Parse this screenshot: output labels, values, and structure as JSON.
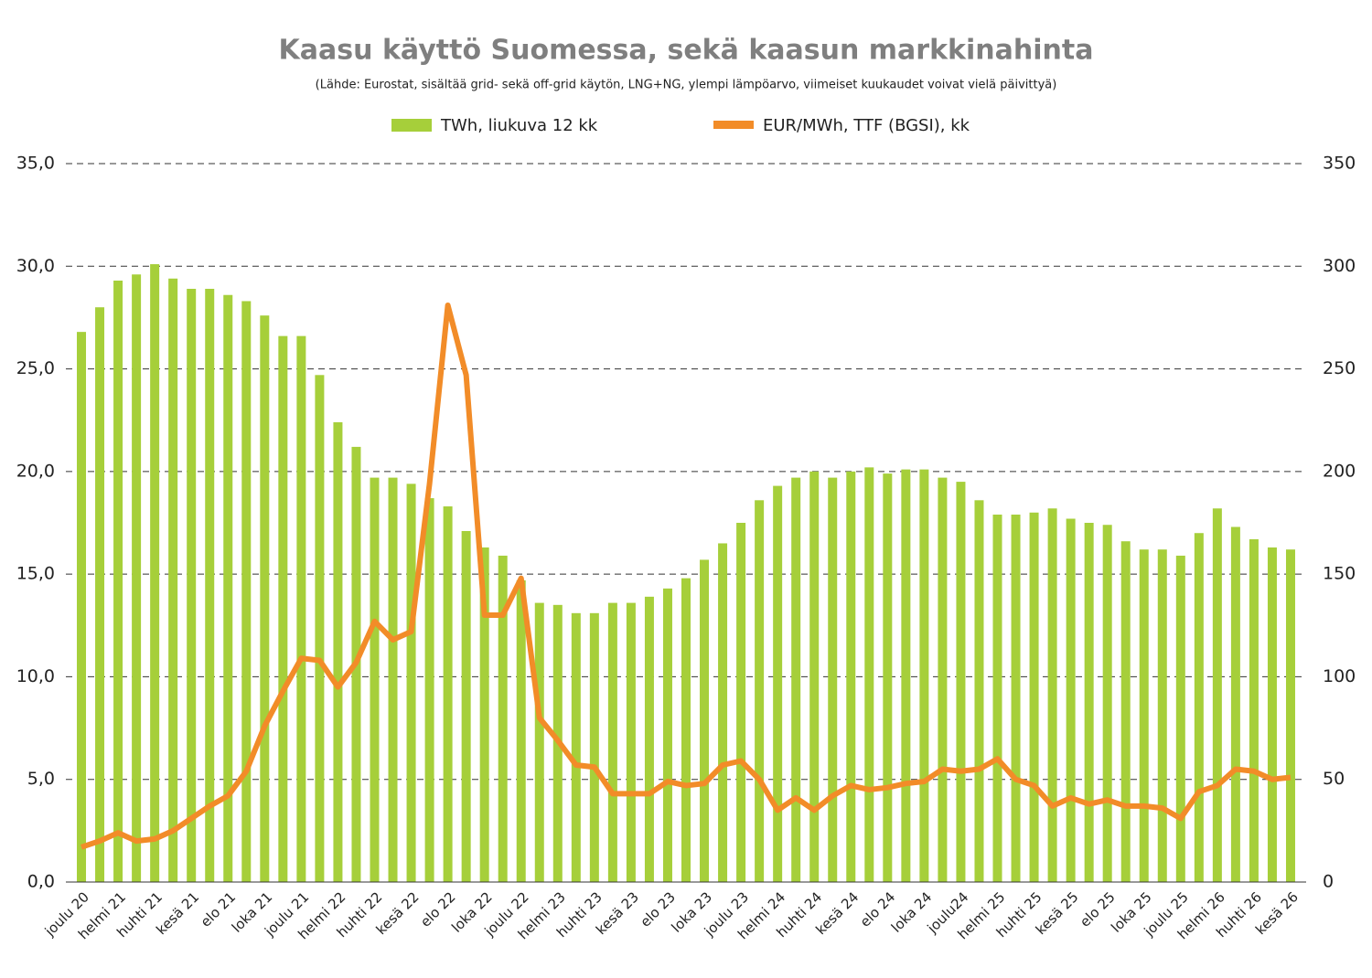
{
  "chart_data": {
    "type": "bar-line",
    "title": "Kaasu käyttö Suomessa, sekä kaasun markkinahinta",
    "subtitle": "(Lähde: Eurostat, sisältää grid- sekä off-grid käytön, LNG+NG, ylempi lämpöarvo, viimeiset kuukaudet voivat vielä päivittyä)",
    "categories": [
      "joulu 20",
      null,
      "helmi 21",
      null,
      "huhti 21",
      null,
      "kesä 21",
      null,
      "elo 21",
      null,
      "loka 21",
      null,
      "joulu 21",
      null,
      "helmi 22",
      null,
      "huhti 22",
      null,
      "kesä 22",
      null,
      "elo 22",
      null,
      "loka 22",
      null,
      "joulu 22",
      null,
      "helmi 23",
      null,
      "huhti 23",
      null,
      "kesä 23",
      null,
      "elo 23",
      null,
      "loka 23",
      null,
      "joulu 23",
      null,
      "helmi 24",
      null,
      "huhti 24",
      null,
      "kesä 24",
      null,
      "elo 24",
      null,
      "loka 24",
      null,
      "joulu24",
      null,
      "helmi 25",
      null,
      "huhti 25",
      null,
      "kesä 25",
      null,
      "elo 25",
      null,
      "loka 25",
      null,
      "joulu 25",
      null,
      "helmi 26",
      null,
      "huhti 26",
      null,
      "kesä 26"
    ],
    "series": [
      {
        "name": "TWh, liukuva 12 kk",
        "color": "#a6cf3a",
        "type": "bar",
        "axis": "y",
        "values": [
          26.8,
          28.0,
          29.3,
          29.6,
          30.1,
          29.4,
          28.9,
          28.9,
          28.6,
          28.3,
          27.6,
          26.6,
          26.6,
          24.7,
          22.4,
          21.2,
          19.7,
          19.7,
          19.4,
          18.7,
          18.3,
          17.1,
          16.3,
          15.9,
          14.7,
          13.6,
          13.5,
          13.1,
          13.1,
          13.6,
          13.6,
          13.9,
          14.3,
          14.8,
          15.7,
          16.5,
          17.5,
          18.6,
          19.3,
          19.7,
          20.0,
          19.7,
          20.0,
          20.2,
          19.9,
          20.1,
          20.1,
          19.7,
          19.5,
          18.6,
          17.9,
          17.9,
          18.0,
          18.2,
          17.7,
          17.5,
          17.4,
          16.6,
          16.2,
          16.2,
          15.9,
          17.0,
          18.2,
          17.3,
          16.7,
          16.3,
          16.2
        ]
      },
      {
        "name": "EUR/MWh, TTF (BGSI), kk",
        "color": "#f28c28",
        "type": "line",
        "axis": "y2",
        "values": [
          17,
          20,
          24,
          20,
          21,
          25,
          31,
          37,
          42,
          54,
          76,
          93,
          109,
          108,
          95,
          107,
          127,
          118,
          122,
          194,
          281,
          247,
          130,
          130,
          148,
          80,
          69,
          57,
          56,
          43,
          43,
          43,
          49,
          47,
          48,
          57,
          59,
          50,
          35,
          41,
          35,
          42,
          47,
          45,
          46,
          48,
          49,
          55,
          54,
          55,
          60,
          50,
          47,
          37,
          41,
          38,
          40,
          37,
          37,
          36,
          31,
          44,
          47,
          55,
          54,
          50,
          51
        ]
      }
    ],
    "ylim": [
      0,
      35
    ],
    "yticks": [
      {
        "value": 0,
        "label": "0,0"
      },
      {
        "value": 5,
        "label": "5,0"
      },
      {
        "value": 10,
        "label": "10,0"
      },
      {
        "value": 15,
        "label": "15,0"
      },
      {
        "value": 20,
        "label": "20,0"
      },
      {
        "value": 25,
        "label": "25,0"
      },
      {
        "value": 30,
        "label": "30,0"
      },
      {
        "value": 35,
        "label": "35,0"
      }
    ],
    "y2lim": [
      0,
      350
    ],
    "y2ticks": [
      0,
      50,
      100,
      150,
      200,
      250,
      300,
      350
    ],
    "grid": true,
    "legend": "top"
  }
}
